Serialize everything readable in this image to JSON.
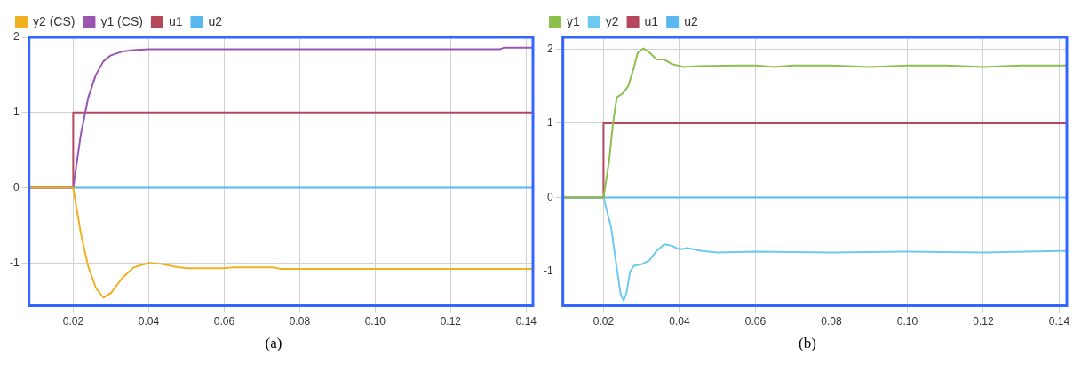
{
  "chart_data": [
    {
      "type": "line",
      "xlim": [
        0.0083,
        0.1418
      ],
      "ylim": [
        -1.57,
        2
      ],
      "xticks": [
        0.02,
        0.04,
        0.06,
        0.08,
        {
          "value": 0.1,
          "label": "0.10"
        },
        0.12,
        0.14
      ],
      "yticks": [
        -1,
        0,
        1,
        2
      ],
      "grid": true,
      "legend": "top left",
      "marker": "none",
      "annotations": [
        "(a)"
      ],
      "series": [
        {
          "name": "y2 (CS)",
          "color": "#f0b020",
          "x": [
            0.0083,
            0.02,
            0.022,
            0.024,
            0.026,
            0.028,
            0.03,
            0.033,
            0.036,
            0.04,
            0.043,
            0.047,
            0.05,
            0.06,
            0.062,
            0.073,
            0.075,
            0.1418
          ],
          "values": [
            0,
            0,
            -0.6,
            -1.05,
            -1.33,
            -1.46,
            -1.4,
            -1.2,
            -1.06,
            -1.0,
            -1.01,
            -1.05,
            -1.07,
            -1.07,
            -1.06,
            -1.06,
            -1.08,
            -1.08
          ]
        },
        {
          "name": "y1 (CS)",
          "color": "#9a55b0",
          "x": [
            0.0083,
            0.02,
            0.022,
            0.024,
            0.026,
            0.028,
            0.03,
            0.033,
            0.036,
            0.04,
            0.133,
            0.134,
            0.1418
          ],
          "values": [
            0,
            0,
            0.7,
            1.2,
            1.5,
            1.68,
            1.76,
            1.81,
            1.83,
            1.84,
            1.84,
            1.86,
            1.86
          ]
        },
        {
          "name": "u1",
          "color": "#b5475c",
          "x": [
            0.0083,
            0.02,
            0.02,
            0.1418
          ],
          "values": [
            0,
            0,
            1,
            1
          ]
        },
        {
          "name": "u2",
          "color": "#5ab8f0",
          "x": [
            0.0083,
            0.1418
          ],
          "values": [
            0,
            0
          ]
        }
      ]
    },
    {
      "type": "line",
      "xlim": [
        0.0093,
        0.142
      ],
      "ylim": [
        -1.46,
        2.16
      ],
      "xticks": [
        0.02,
        0.04,
        0.06,
        0.08,
        {
          "value": 0.1,
          "label": "0.10"
        },
        0.12,
        0.14
      ],
      "yticks": [
        -1,
        0,
        1,
        2
      ],
      "grid": true,
      "legend": "top left",
      "marker": "none",
      "annotations": [
        "(b)"
      ],
      "series": [
        {
          "name": "y1",
          "color": "#8cbf4c",
          "x": [
            0.0093,
            0.02,
            0.0215,
            0.0225,
            0.0235,
            0.025,
            0.0265,
            0.028,
            0.029,
            0.0305,
            0.032,
            0.034,
            0.036,
            0.038,
            0.041,
            0.045,
            0.055,
            0.06,
            0.065,
            0.07,
            0.08,
            0.09,
            0.1,
            0.11,
            0.12,
            0.13,
            0.142
          ],
          "values": [
            0,
            0,
            0.5,
            1.0,
            1.35,
            1.4,
            1.5,
            1.75,
            1.95,
            2.01,
            1.96,
            1.86,
            1.86,
            1.8,
            1.76,
            1.77,
            1.78,
            1.78,
            1.76,
            1.78,
            1.78,
            1.76,
            1.78,
            1.78,
            1.76,
            1.78,
            1.78
          ]
        },
        {
          "name": "y2",
          "color": "#6ccaf0",
          "x": [
            0.0093,
            0.02,
            0.022,
            0.0235,
            0.0245,
            0.0253,
            0.026,
            0.027,
            0.028,
            0.03,
            0.032,
            0.034,
            0.036,
            0.038,
            0.04,
            0.042,
            0.046,
            0.05,
            0.06,
            0.08,
            0.1,
            0.12,
            0.14,
            0.142
          ],
          "values": [
            0,
            0,
            -0.4,
            -0.95,
            -1.3,
            -1.39,
            -1.3,
            -1.0,
            -0.92,
            -0.9,
            -0.85,
            -0.72,
            -0.63,
            -0.65,
            -0.7,
            -0.68,
            -0.72,
            -0.74,
            -0.73,
            -0.74,
            -0.73,
            -0.74,
            -0.72,
            -0.72
          ]
        },
        {
          "name": "u1",
          "color": "#b5475c",
          "x": [
            0.0093,
            0.02,
            0.02,
            0.142
          ],
          "values": [
            0,
            0,
            1,
            1
          ]
        },
        {
          "name": "u2",
          "color": "#5ab8f0",
          "x": [
            0.0093,
            0.142
          ],
          "values": [
            0,
            0
          ]
        }
      ]
    }
  ]
}
